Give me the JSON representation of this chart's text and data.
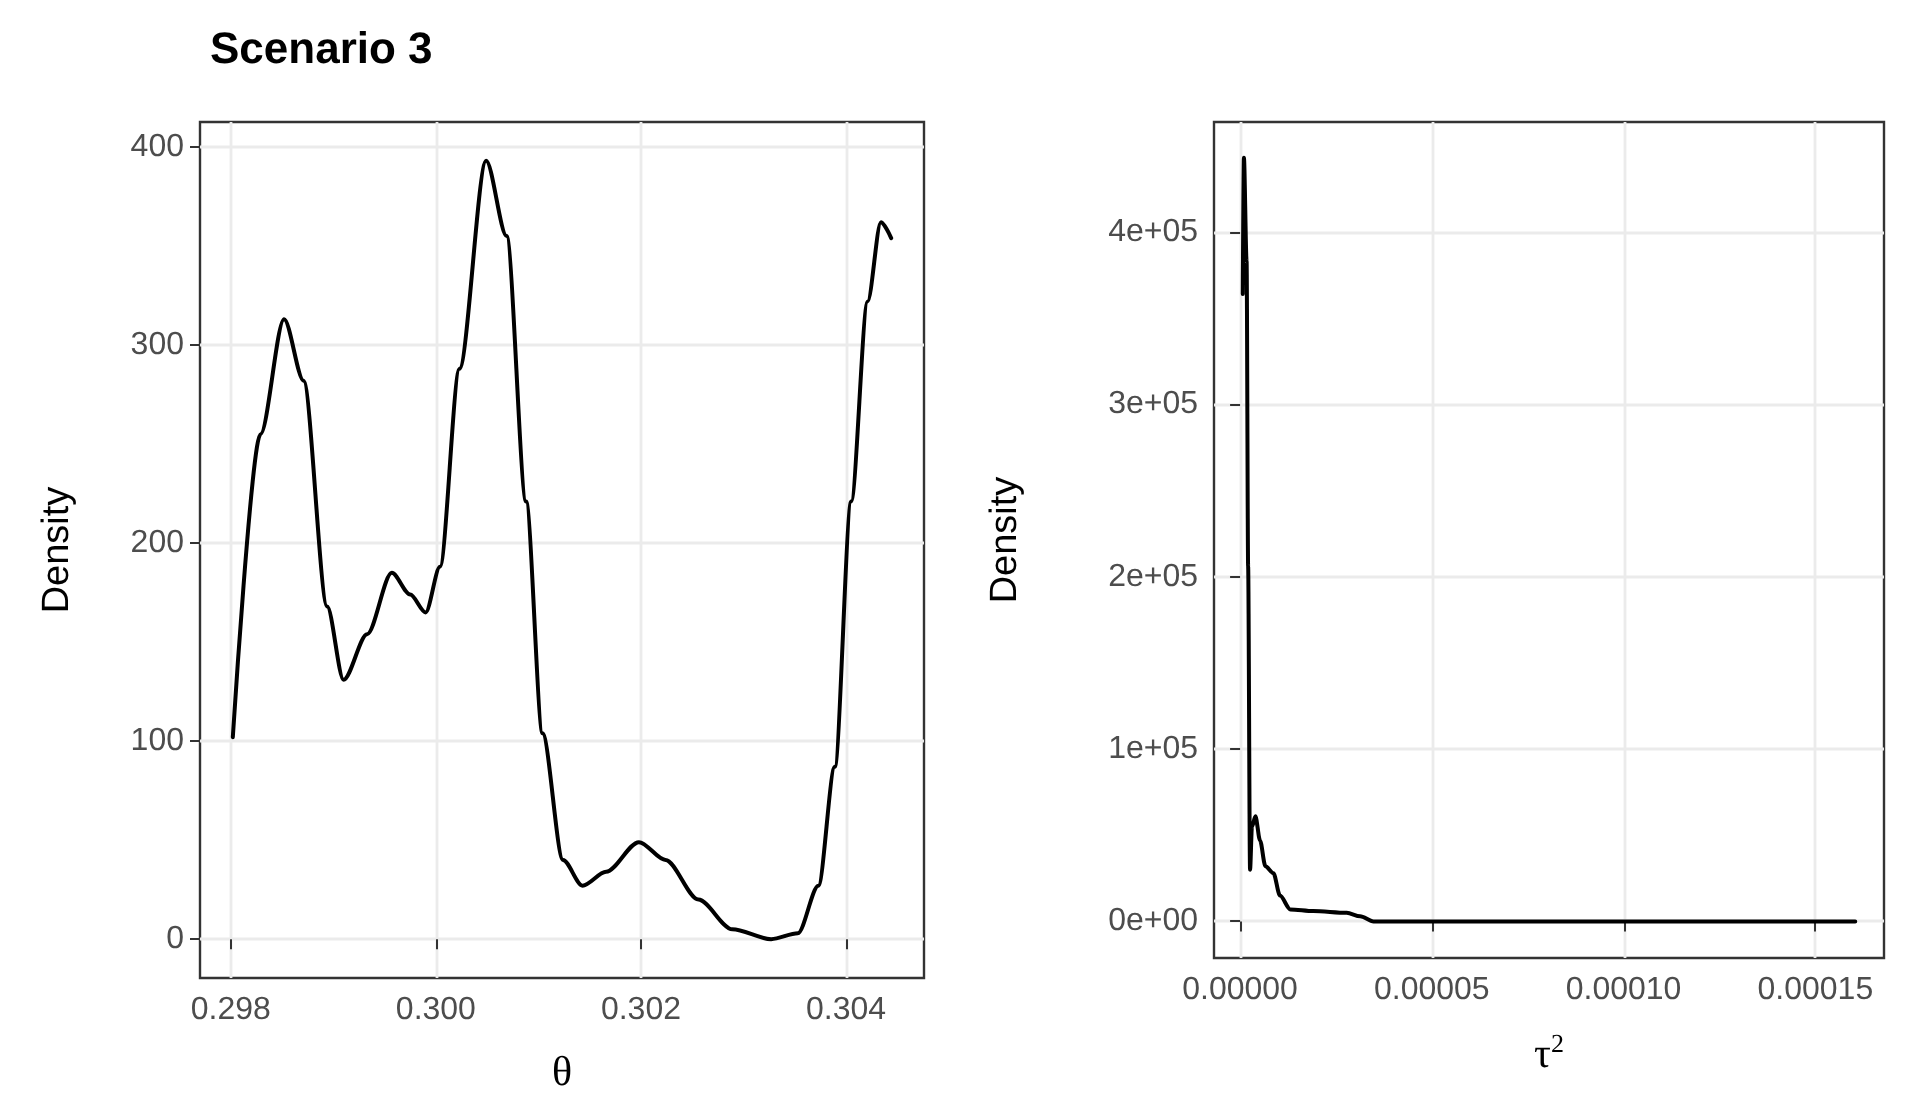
{
  "chart_data": [
    {
      "type": "line",
      "title": "Scenario 3",
      "xlabel": "θ",
      "ylabel": "Density",
      "grid": true,
      "marker": "none",
      "line_style": "solid",
      "xlim": [
        0.2977,
        0.30476
      ],
      "ylim": [
        -19.6,
        412.6
      ],
      "xticks": [
        0.298,
        {
          "value": 0.3,
          "label": "0.300"
        },
        0.302,
        0.304
      ],
      "yticks": [
        0,
        100,
        200,
        300,
        400
      ],
      "series": [
        {
          "color": "#000000",
          "x": [
            0.29802,
            0.29829,
            0.29852,
            0.29871,
            0.29894,
            0.2991,
            0.29933,
            0.29957,
            0.29975,
            0.2999,
            0.30004,
            0.30023,
            0.30049,
            0.30069,
            0.30088,
            0.30104,
            0.30124,
            0.30143,
            0.30166,
            0.30198,
            0.30224,
            0.30256,
            0.30289,
            0.30327,
            0.30353,
            0.30373,
            0.30389,
            0.30405,
            0.30421,
            0.30434,
            0.30444
          ],
          "values": [
            102,
            255,
            313,
            282,
            168,
            131,
            154,
            185,
            174,
            165,
            188,
            288,
            393,
            355,
            221,
            104,
            40,
            27,
            34,
            49,
            40,
            20,
            5,
            0,
            3,
            27,
            87,
            221,
            322,
            362,
            354
          ]
        }
      ]
    },
    {
      "type": "line",
      "xlabel": "τ$^{2}$",
      "ylabel": "Density",
      "grid": true,
      "marker": "none",
      "line_style": "solid",
      "xlim": [
        -6.8e-06,
        0.0001679
      ],
      "ylim": [
        -21200,
        463700
      ],
      "xticks": [
        {
          "value": 0,
          "label": "0.00000"
        },
        {
          "value": 5e-05,
          "label": "0.00005"
        },
        {
          "value": 0.0001,
          "label": "0.00010"
        },
        {
          "value": 0.00015,
          "label": "0.00015"
        }
      ],
      "yticks": [
        {
          "value": 0,
          "label": "0e+00"
        },
        {
          "value": 100000,
          "label": "1e+05"
        },
        {
          "value": 200000,
          "label": "2e+05"
        },
        {
          "value": 300000,
          "label": "3e+05"
        },
        {
          "value": 400000,
          "label": "4e+05"
        }
      ],
      "series": [
        {
          "color": "#000000",
          "x": [
            7e-07,
            1e-06,
            1.7e-06,
            2.1e-06,
            2.6e-06,
            3.1e-06,
            4e-06,
            5.2e-06,
            6.6e-06,
            8.7e-06,
            1.04e-05,
            1.31e-05,
            1.91e-05,
            2.78e-05,
            3.13e-05,
            3.48e-05,
            4.9e-05,
            0.0001604
          ],
          "values": [
            364000,
            443000,
            383000,
            206000,
            30000,
            55000,
            61000,
            47000,
            32000,
            28000,
            15000,
            7000,
            6000,
            5000,
            3000,
            0,
            0,
            0
          ]
        }
      ]
    }
  ]
}
